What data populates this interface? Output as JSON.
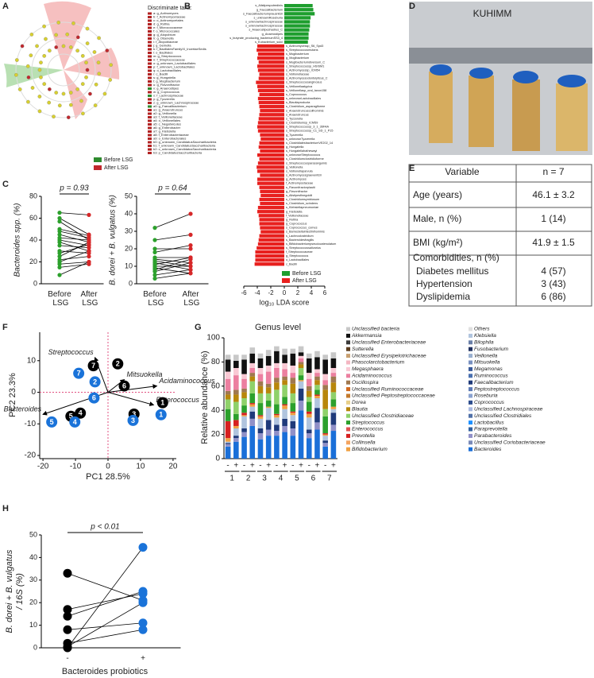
{
  "panel_labels": [
    "A",
    "B",
    "C",
    "D",
    "E",
    "F",
    "G",
    "H"
  ],
  "panel_a": {
    "legend_title": "Discriminate taxa:",
    "taxa": [
      {
        "label": "a: g_Actinomyces",
        "color": "#b22222"
      },
      {
        "label": "b: f_Actinomycetaceae",
        "color": "#b22222"
      },
      {
        "label": "c: o_Actinomycetales",
        "color": "#b22222"
      },
      {
        "label": "d: g_Rothia",
        "color": "#b22222"
      },
      {
        "label": "e: f_Micrococcaceae",
        "color": "#b22222"
      },
      {
        "label": "f: o_Micrococcales",
        "color": "#b22222"
      },
      {
        "label": "g: g_Atopobium",
        "color": "#b22222"
      },
      {
        "label": "h: g_Olsenella",
        "color": "#b22222"
      },
      {
        "label": "i: f_Atopobiaceae",
        "color": "#b22222"
      },
      {
        "label": "j: g_Gemella",
        "color": "#b22222"
      },
      {
        "label": "k: f_BacillalesFamilyXI_IncertaeSedis",
        "color": "#b22222"
      },
      {
        "label": "l: o_Bacillales",
        "color": "#b22222"
      },
      {
        "label": "m: g_Streptococcus",
        "color": "#b22222"
      },
      {
        "label": "n: f_Streptococcaceae",
        "color": "#b22222"
      },
      {
        "label": "o: g_unknown_Lactobacillales",
        "color": "#b22222"
      },
      {
        "label": "p: f_unknown_Lactobacillales",
        "color": "#b22222"
      },
      {
        "label": "q: o_Lactobacillales",
        "color": "#b22222"
      },
      {
        "label": "r: c_Bacilli",
        "color": "#b22222"
      },
      {
        "label": "s: g_Hungatella",
        "color": "#b22222"
      },
      {
        "label": "t: g_Mogibacterium",
        "color": "#b22222"
      },
      {
        "label": "u: g_Flavonifractor",
        "color": "#b22222"
      },
      {
        "label": "v: g_Anaerostipes",
        "color": "#2e8b2e"
      },
      {
        "label": "w: g_Coprococcus",
        "color": "#b22222"
      },
      {
        "label": "x: f_Lachnospiraceae",
        "color": "#2e8b2e"
      },
      {
        "label": "y: g_Tyzzerella",
        "color": "#b22222"
      },
      {
        "label": "z: g_unknown_Lachnospiraceae",
        "color": "#b22222"
      },
      {
        "label": "a0: g_Faecalibacterium",
        "color": "#2e8b2e"
      },
      {
        "label": "a1: g_Anaerotruncus",
        "color": "#b22222"
      },
      {
        "label": "a2: g_Veillonella",
        "color": "#b22222"
      },
      {
        "label": "a3: f_Veillonellaceae",
        "color": "#b22222"
      },
      {
        "label": "a4: o_Veillonellales",
        "color": "#b22222"
      },
      {
        "label": "a5: c_Negativicutes",
        "color": "#b22222"
      },
      {
        "label": "a6: g_Enterobacter",
        "color": "#b22222"
      },
      {
        "label": "a7: g_Klebsiella",
        "color": "#b22222"
      },
      {
        "label": "a8: f_Enterobacteriaceae",
        "color": "#b22222"
      },
      {
        "label": "a9: o_Enterobacterales",
        "color": "#b22222"
      },
      {
        "label": "b0: g_unknown_CandidatusSaccharibacteria",
        "color": "#b22222"
      },
      {
        "label": "b1: f_unknown_CandidatusSaccharibacteria",
        "color": "#b22222"
      },
      {
        "label": "b2: c_unknown_CandidatusSaccharibacteria",
        "color": "#b22222"
      },
      {
        "label": "b3: p_CandidatusSaccharibacteria",
        "color": "#b22222"
      }
    ],
    "legend": [
      {
        "name": "Before LSG",
        "color": "#2e8b2e"
      },
      {
        "name": "After LSG",
        "color": "#c0282d"
      }
    ]
  },
  "panel_b": {
    "type": "bar",
    "xlabel": "log₁₀ LDA score",
    "xlim": [
      -6,
      6
    ],
    "xticks": [
      -6,
      -4,
      -2,
      0,
      2,
      4,
      6
    ],
    "series": [
      {
        "name": "Before LSG",
        "color": "#1e9e2e",
        "categories": [
          "s_Alistipesputredinis",
          "g_Faecalibacterium",
          "s_Faecalibacteriumprausnitzii",
          "s_unknownRoseburia",
          "s_unknownlachnospiraceae",
          "s_unknownlachnospiraceae",
          "s_Anaerostipeshadrus_C",
          "g_Anaerostipes",
          "s_butyrate_producing_bacteriumSS3_4",
          "s_Eubacterium_sulci"
        ],
        "values": [
          4.2,
          4.3,
          4.5,
          3.9,
          3.8,
          3.8,
          3.7,
          3.6,
          3.6,
          3.5
        ]
      },
      {
        "name": "After LSG",
        "color": "#e8201e",
        "categories": [
          "s_Actinomycessp_S6_Spd3",
          "s_Streptococcusmutans",
          "s_Mogibacterium",
          "g_Mogibacterium",
          "s_Mogibacteriumdiversum_C",
          "s_Streptococcussp_HSISM1",
          "s_Actinomycessp_ICM54",
          "s_Veillonellaceae",
          "s_Actinomycesodontolyticus_C",
          "s_Streptococcusanginosus",
          "s_Veillonellaatypica",
          "s_Veillonellasp_oral_taxon158",
          "s_Coprococcus",
          "s_unknownLactobacillales",
          "s_Blautiaproducta",
          "s_Clostridium_asparagiforme",
          "s_Anaerotruncuscolihominis",
          "s_Anaerotruncus",
          "s_Tyzzerella",
          "s_Clostridiumsp_ICM59",
          "s_Streptococcussp_3_1_36FAA",
          "s_Streptococcussp_C1_SD_1_P15",
          "g_Tyzzerella",
          "s_unknownTyzzerella",
          "s_ClostridialesbacteriumVE202_14",
          "g_Hungatella",
          "s_Hungatellahathewayi",
          "s_unknownStreptococcus",
          "s_Clostridiumclostridioforme",
          "s_Streptococcusparasanguinis",
          "g_Veillonella",
          "s_Veillonellaparvula",
          "s_Actinomycesgraevenitzii",
          "g_Actinomyces",
          "f_Actinomycetaceae",
          "s_Flavonifractorplautii",
          "g_Flavonifractor",
          "s_Alistipesfinegoldii",
          "s_Clostridiumsymbiosum",
          "s_Clostridium_scindens",
          "s_Klebsiellapneumoniae",
          "g_Klebsiella",
          "f_Veillonellaceae",
          "g_Rothia",
          "g_Coprococcus",
          "s_Coprococcus_comes",
          "s_Barnesiellaintestinihominis",
          "s_Lachnoclostridium",
          "s_Bacteroidesfragilis",
          "s_Bifidobacteriumpseudocatenulatum",
          "s_Streptococcussalivarius",
          "f_Streptococcaceae",
          "g_Streptococcus",
          "o_Lactobacillales",
          "c_Bacilli"
        ],
        "values": [
          -4.0,
          -4.1,
          -3.9,
          -4.0,
          -3.8,
          -4.0,
          -3.9,
          -3.7,
          -3.8,
          -4.2,
          -4.0,
          -3.9,
          -3.7,
          -3.9,
          -3.8,
          -3.7,
          -3.6,
          -3.7,
          -3.8,
          -3.9,
          -4.0,
          -3.9,
          -3.6,
          -3.5,
          -3.7,
          -3.8,
          -3.6,
          -4.0,
          -3.7,
          -3.9,
          -4.1,
          -4.0,
          -3.6,
          -4.0,
          -4.0,
          -3.7,
          -3.6,
          -3.5,
          -3.7,
          -3.6,
          -3.9,
          -4.0,
          -3.8,
          -3.7,
          -3.7,
          -3.6,
          -3.5,
          -3.7,
          -3.8,
          -3.9,
          -4.1,
          -4.3,
          -4.3,
          -4.3,
          -4.4
        ]
      }
    ]
  },
  "panel_c": [
    {
      "type": "paired",
      "ylabel": "Bacteroides spp. (%)",
      "p_label": "p = 0.93",
      "ylim": [
        0,
        80
      ],
      "yticks": [
        0,
        20,
        40,
        60,
        80
      ],
      "categories": [
        "Before LSG",
        "After LSG"
      ],
      "series": [
        {
          "color": "#2ca02c",
          "values": [
            65,
            60,
            57,
            50,
            48,
            45,
            42,
            40,
            38,
            35,
            30,
            28,
            25,
            22,
            20,
            18,
            15,
            8
          ]
        },
        {
          "color": "#d62728",
          "values": [
            63,
            45,
            40,
            44,
            42,
            38,
            40,
            35,
            30,
            33,
            28,
            36,
            38,
            25,
            30,
            20,
            18,
            20
          ]
        }
      ]
    },
    {
      "type": "paired",
      "ylabel": "B. dorei + B. vulgatus (%)",
      "p_label": "p = 0.64",
      "ylim": [
        0,
        50
      ],
      "yticks": [
        0,
        10,
        20,
        30,
        40,
        50
      ],
      "categories": [
        "Before LSG",
        "After LSG"
      ],
      "series": [
        {
          "color": "#2ca02c",
          "values": [
            32,
            25,
            20,
            18,
            15,
            14,
            13,
            12,
            11,
            10,
            9,
            8,
            7,
            5,
            3
          ]
        },
        {
          "color": "#d62728",
          "values": [
            40,
            28,
            20,
            22,
            15,
            12,
            10,
            8,
            15,
            10,
            6,
            14,
            12,
            8,
            6
          ]
        }
      ]
    }
  ],
  "panel_d": {
    "caption": "KUHIMM"
  },
  "panel_e": {
    "header": [
      "Variable",
      "n = 7"
    ],
    "rows": [
      [
        "Age (years)",
        "46.1 ± 3.2"
      ],
      [
        "Male, n (%)",
        "1 (14)"
      ],
      [
        "BMI (kg/m²)",
        "41.9 ± 1.5"
      ]
    ],
    "group_title": "Comorbidities, n (%)",
    "group_rows": [
      [
        "Diabetes mellitus",
        "4 (57)"
      ],
      [
        "Hypertension",
        "3 (43)"
      ],
      [
        "Dyslipidemia",
        "6 (86)"
      ]
    ]
  },
  "panel_f": {
    "type": "scatter",
    "xlabel": "PC1 28.5%",
    "ylabel": "PC2 23.3%",
    "xlim": [
      -21,
      21
    ],
    "ylim": [
      -21,
      19
    ],
    "xticks": [
      -20,
      -10,
      0,
      10,
      20
    ],
    "yticks": [
      -20,
      -10,
      0,
      10
    ],
    "series": [
      {
        "color": "#000000",
        "point_labels": [
          "1",
          "2",
          "3",
          "4",
          "5",
          "6",
          "7"
        ],
        "x": [
          16.8,
          3,
          8,
          -8.5,
          -11.4,
          5,
          -4.5
        ],
        "values": [
          -3.3,
          9,
          -6.9,
          -6.6,
          -7.6,
          2,
          8.4
        ]
      },
      {
        "color": "#1a73d9",
        "point_labels": [
          "1",
          "2",
          "3",
          "4",
          "5",
          "6",
          "7"
        ],
        "x": [
          16.3,
          -4,
          7.7,
          -10.2,
          -17.3,
          -4.3,
          -9
        ],
        "values": [
          -7.1,
          3.3,
          -8.9,
          -9.4,
          -9.4,
          -1.8,
          6
        ]
      }
    ],
    "vectors": [
      {
        "label": "Streptococcus",
        "x": -4,
        "y": 11
      },
      {
        "label": "Mitsuokella",
        "x": 5,
        "y": 4
      },
      {
        "label": "Acidaminococcus",
        "x": 15,
        "y": 2
      },
      {
        "label": "Enterococcus",
        "x": 14,
        "y": -4
      },
      {
        "label": "Bacteroides",
        "x": -20,
        "y": -7
      }
    ]
  },
  "panel_g": {
    "type": "bar",
    "stacked": true,
    "title": "Genus level",
    "ylabel": "Relative abundance (%)",
    "ylim": [
      0,
      100
    ],
    "yticks": [
      0,
      20,
      40,
      60,
      80,
      100
    ],
    "categories": [
      "-",
      "+",
      "-",
      "+",
      "-",
      "+",
      "-",
      "+",
      "-",
      "+",
      "-",
      "+",
      "-",
      "+"
    ],
    "groups": [
      "1",
      "2",
      "3",
      "4",
      "5",
      "6",
      "7"
    ],
    "legend_columns": 2,
    "series": [
      {
        "name": "Unclassified bacteria",
        "color": "#c8c8c8",
        "values": [
          4,
          5,
          4,
          5,
          4,
          5,
          4,
          5,
          4,
          5,
          4,
          5,
          4,
          5
        ]
      },
      {
        "name": "Akkermansia",
        "color": "#111111",
        "values": [
          10,
          6,
          12,
          8,
          8,
          8,
          10,
          7,
          10,
          3,
          12,
          10,
          12,
          8
        ]
      },
      {
        "name": "Unclassified Enterobacteriaceae",
        "color": "#3a3a3a"
      },
      {
        "name": "Sutterella",
        "color": "#5c3d1e"
      },
      {
        "name": "Unclassified Erysipelotrichaceae",
        "color": "#c8a070"
      },
      {
        "name": "Phascolarctobacterium",
        "color": "#f4b6c2"
      },
      {
        "name": "Megasphaera",
        "color": "#f9c9d4",
        "values": [
          6,
          6,
          4,
          4,
          5,
          5,
          4,
          5,
          6,
          2,
          5,
          3,
          5,
          4
        ]
      },
      {
        "name": "Acidaminococcus",
        "color": "#ec7fa0",
        "values": [
          10,
          12,
          8,
          4,
          6,
          10,
          8,
          6,
          4,
          3,
          6,
          3,
          4,
          3
        ]
      },
      {
        "name": "Oscillospira",
        "color": "#a07850",
        "values": [
          3,
          4,
          3,
          3,
          4,
          3,
          4,
          3,
          5,
          2,
          4,
          3,
          4,
          5
        ]
      },
      {
        "name": "Unclassified Ruminococcaceae",
        "color": "#d2691e"
      },
      {
        "name": "Unclassified Peptostreptococcaceae",
        "color": "#c47a2c"
      },
      {
        "name": "Dorea",
        "color": "#e8d08a"
      },
      {
        "name": "Blautia",
        "color": "#b8860b",
        "values": [
          4,
          6,
          5,
          4,
          6,
          5,
          6,
          4,
          8,
          3,
          5,
          4,
          16,
          8
        ]
      },
      {
        "name": "Unclassified Clostridiaceae",
        "color": "#8fd16a",
        "values": [
          8,
          10,
          6,
          10,
          8,
          6,
          12,
          10,
          8,
          6,
          4,
          4,
          6,
          6
        ]
      },
      {
        "name": "Streptococcus",
        "color": "#2ca02c",
        "values": [
          10,
          5,
          6,
          8,
          10,
          5,
          8,
          6,
          7,
          4,
          8,
          4,
          14,
          6
        ]
      },
      {
        "name": "Enterococcus",
        "color": "#e05050"
      },
      {
        "name": "Prevotella",
        "color": "#d62020",
        "values": [
          14,
          5,
          2,
          1,
          1,
          0,
          1,
          1,
          1,
          0,
          2,
          1,
          1,
          0
        ]
      },
      {
        "name": "Collinsella",
        "color": "#f4a460"
      },
      {
        "name": "Bifidobacterium",
        "color": "#f0a040",
        "values": [
          3,
          2,
          1,
          2,
          2,
          1,
          2,
          3,
          2,
          1,
          3,
          2,
          1,
          2
        ]
      },
      {
        "name": "Others",
        "color": "#e0e0e0"
      },
      {
        "name": "Klebsiella",
        "color": "#b0c4de",
        "values": [
          1,
          6,
          10,
          4,
          8,
          10,
          6,
          8,
          5,
          6,
          10,
          8,
          4,
          3
        ]
      },
      {
        "name": "Bilophila",
        "color": "#6a7fa8"
      },
      {
        "name": "Fusobacterium",
        "color": "#203060"
      },
      {
        "name": "Veillonella",
        "color": "#9ab0d0"
      },
      {
        "name": "Mitsuokella",
        "color": "#7890c0"
      },
      {
        "name": "Megamonas",
        "color": "#3a5a9a"
      },
      {
        "name": "Ruminococcus",
        "color": "#4a70b0"
      },
      {
        "name": "Faecalibacterium",
        "color": "#1f3a7a",
        "values": [
          1,
          2,
          3,
          6,
          4,
          8,
          5,
          6,
          6,
          10,
          3,
          12,
          2,
          10
        ]
      },
      {
        "name": "Peptostreptococcus",
        "color": "#5d7ab5"
      },
      {
        "name": "Roseburia",
        "color": "#8aa2d0"
      },
      {
        "name": "Coprococcus",
        "color": "#2e4e8e"
      },
      {
        "name": "Unclassified Lachnospiraceae",
        "color": "#a8b8e0"
      },
      {
        "name": "Unclassified Clostridiales",
        "color": "#5070a8"
      },
      {
        "name": "Lactobacillus",
        "color": "#1e90ff"
      },
      {
        "name": "Paraprevotella",
        "color": "#3060a0"
      },
      {
        "name": "Parabacteroides",
        "color": "#9090c8",
        "values": [
          2,
          3,
          4,
          6,
          5,
          5,
          4,
          5,
          6,
          8,
          4,
          6,
          3,
          5
        ]
      },
      {
        "name": "Unclassified Coriobacteriaceae",
        "color": "#7a8ab8"
      },
      {
        "name": "Bacteroides",
        "color": "#1a6fd8",
        "values": [
          10,
          14,
          18,
          27,
          16,
          19,
          19,
          22,
          19,
          40,
          17,
          24,
          10,
          23
        ]
      }
    ]
  },
  "panel_h": {
    "type": "paired",
    "ylabel_lines": [
      "B. dorei + B. vulgatus",
      "/ 16S (%)"
    ],
    "xlabel": "Bacteroides probiotics",
    "p_label": "p < 0.01",
    "ylim": [
      0,
      50
    ],
    "yticks": [
      0,
      10,
      20,
      30,
      40,
      50
    ],
    "categories": [
      "-",
      "+"
    ],
    "series": [
      {
        "color": "#000000",
        "values": [
          33,
          17,
          14,
          8,
          2,
          0.5,
          0
        ]
      },
      {
        "color": "#1a73d9",
        "values": [
          21,
          24,
          25,
          11,
          8,
          20,
          44.5
        ]
      }
    ]
  }
}
